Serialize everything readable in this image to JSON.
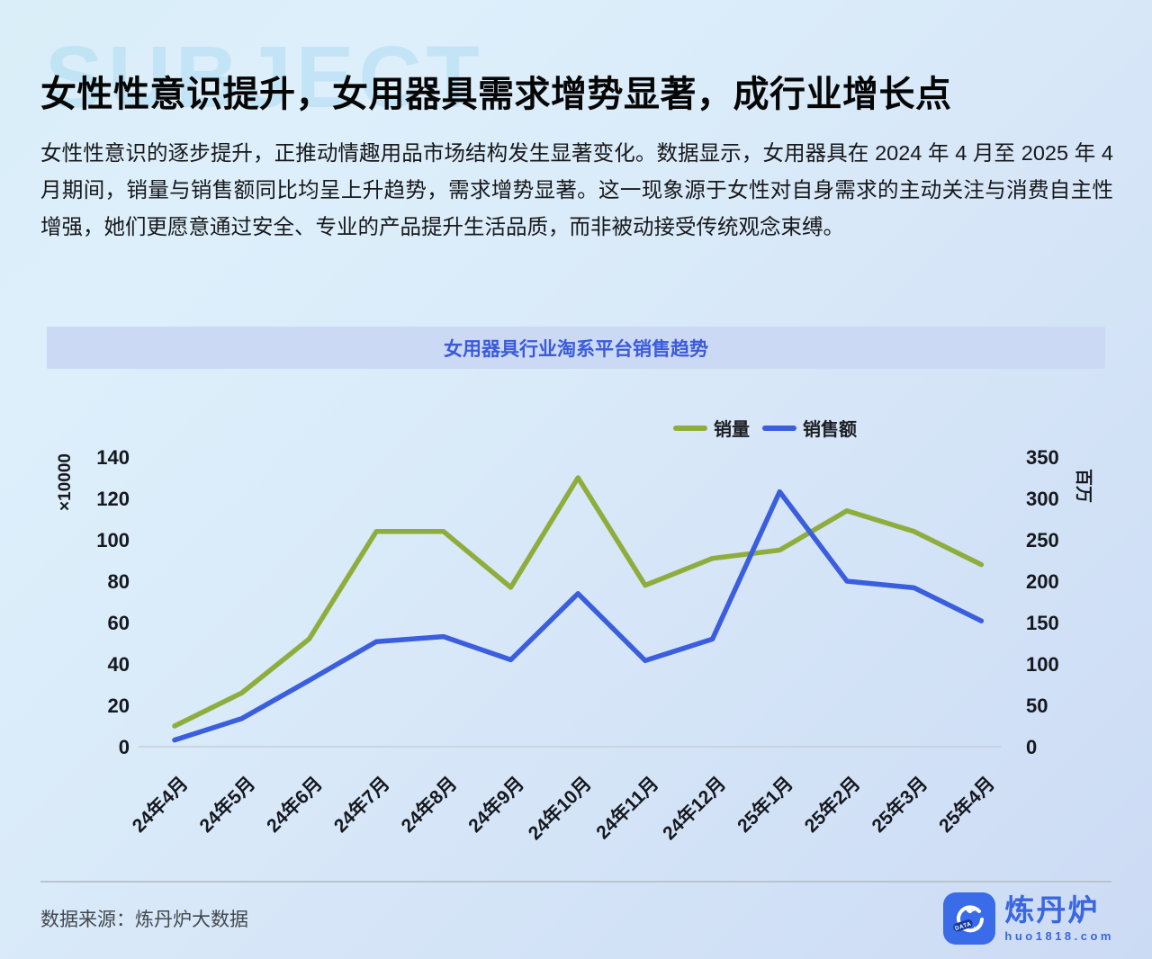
{
  "page": {
    "watermark": "SUBJECT",
    "title": "女性性意识提升，女用器具需求增势显著，成行业增长点",
    "body": "女性性意识的逐步提升，正推动情趣用品市场结构发生显著变化。数据显示，女用器具在 2024 年 4 月至 2025 年 4 月期间，销量与销售额同比均呈上升趋势，需求增势显著。这一现象源于女性对自身需求的主动关注与消费自主性增强，她们更愿意通过安全、专业的产品提升生活品质，而非被动接受传统观念束缚。"
  },
  "chart_header": {
    "title": "女用器具行业淘系平台销售趋势"
  },
  "chart_data": {
    "type": "line",
    "title": "女用器具行业淘系平台销售趋势",
    "categories": [
      "24年4月",
      "24年5月",
      "24年6月",
      "24年7月",
      "24年8月",
      "24年9月",
      "24年10月",
      "24年11月",
      "24年12月",
      "25年1月",
      "25年2月",
      "25年3月",
      "25年4月"
    ],
    "series": [
      {
        "name": "销量",
        "axis": "left",
        "color": "#8fad3c",
        "values": [
          10,
          26,
          52,
          104,
          104,
          77,
          130,
          78,
          91,
          95,
          114,
          104,
          88
        ]
      },
      {
        "name": "销售额",
        "axis": "right",
        "color": "#3a5edd",
        "values": [
          8,
          34,
          80,
          127,
          133,
          105,
          185,
          104,
          130,
          308,
          200,
          192,
          152
        ]
      }
    ],
    "left_axis": {
      "unit": "×10000",
      "min": 0,
      "max": 140,
      "ticks": [
        0,
        20,
        40,
        60,
        80,
        100,
        120,
        140
      ]
    },
    "right_axis": {
      "unit": "百万",
      "min": 0,
      "max": 350,
      "ticks": [
        0,
        50,
        100,
        150,
        200,
        250,
        300,
        350
      ]
    },
    "legend_position": "top",
    "grid": false,
    "x_label_rotation": 45
  },
  "footer": {
    "source": "数据来源：炼丹炉大数据",
    "logo": {
      "name": "炼丹炉",
      "url": "huo1818.com",
      "badge": "DATA"
    }
  },
  "colors": {
    "series_green": "#8fad3c",
    "series_blue": "#3a5edd",
    "chart_title_text": "#3b5bd8",
    "chart_title_bg": "#ccd9f5",
    "watermark": "#aedcf3",
    "brand_blue": "#3a66e0",
    "axis_line": "#c7cdd6"
  }
}
